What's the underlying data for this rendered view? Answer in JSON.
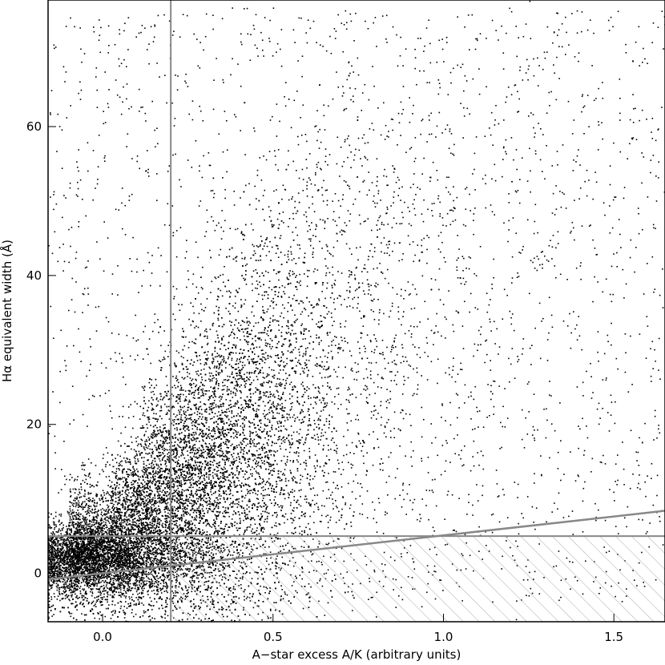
{
  "chart_data": {
    "type": "scatter",
    "xlabel": "A−star excess A/K  (arbitrary units)",
    "ylabel": "Hα equivalent width  (Å)",
    "xlim": [
      -0.16,
      1.65
    ],
    "ylim": [
      -6.5,
      77
    ],
    "xticks": [
      {
        "value": 0.0,
        "label": "0.0"
      },
      {
        "value": 0.5,
        "label": "0.5"
      },
      {
        "value": 1.0,
        "label": "1.0"
      },
      {
        "value": 1.5,
        "label": "1.5"
      }
    ],
    "yticks": [
      {
        "value": 0,
        "label": "0"
      },
      {
        "value": 20,
        "label": "20"
      },
      {
        "value": 40,
        "label": "40"
      },
      {
        "value": 60,
        "label": "60"
      }
    ],
    "grid": false,
    "lines": [
      {
        "kind": "vertical",
        "x": 0.2,
        "color": "#888888"
      },
      {
        "kind": "horizontal",
        "y": 5,
        "from_x": -0.16,
        "to_x": 1.65,
        "color": "#888888"
      },
      {
        "kind": "sloped",
        "points": [
          [
            -0.16,
            -0.8
          ],
          [
            1.65,
            8.4
          ]
        ],
        "color": "#888888"
      }
    ],
    "hatched_region": {
      "x_min": 0.2,
      "x_max": 1.65,
      "y_min": -6.5,
      "y_max": 5,
      "color": "#aaaaaa"
    },
    "point_color": "#000000",
    "distribution": {
      "description_free": true,
      "core": {
        "x_center": 0.25,
        "x_spread": 0.25,
        "y_slope": 28,
        "y_intercept": 2,
        "y_spread": 4
      },
      "tail_extent": {
        "x_max": 1.65,
        "y_max": 77
      }
    }
  }
}
